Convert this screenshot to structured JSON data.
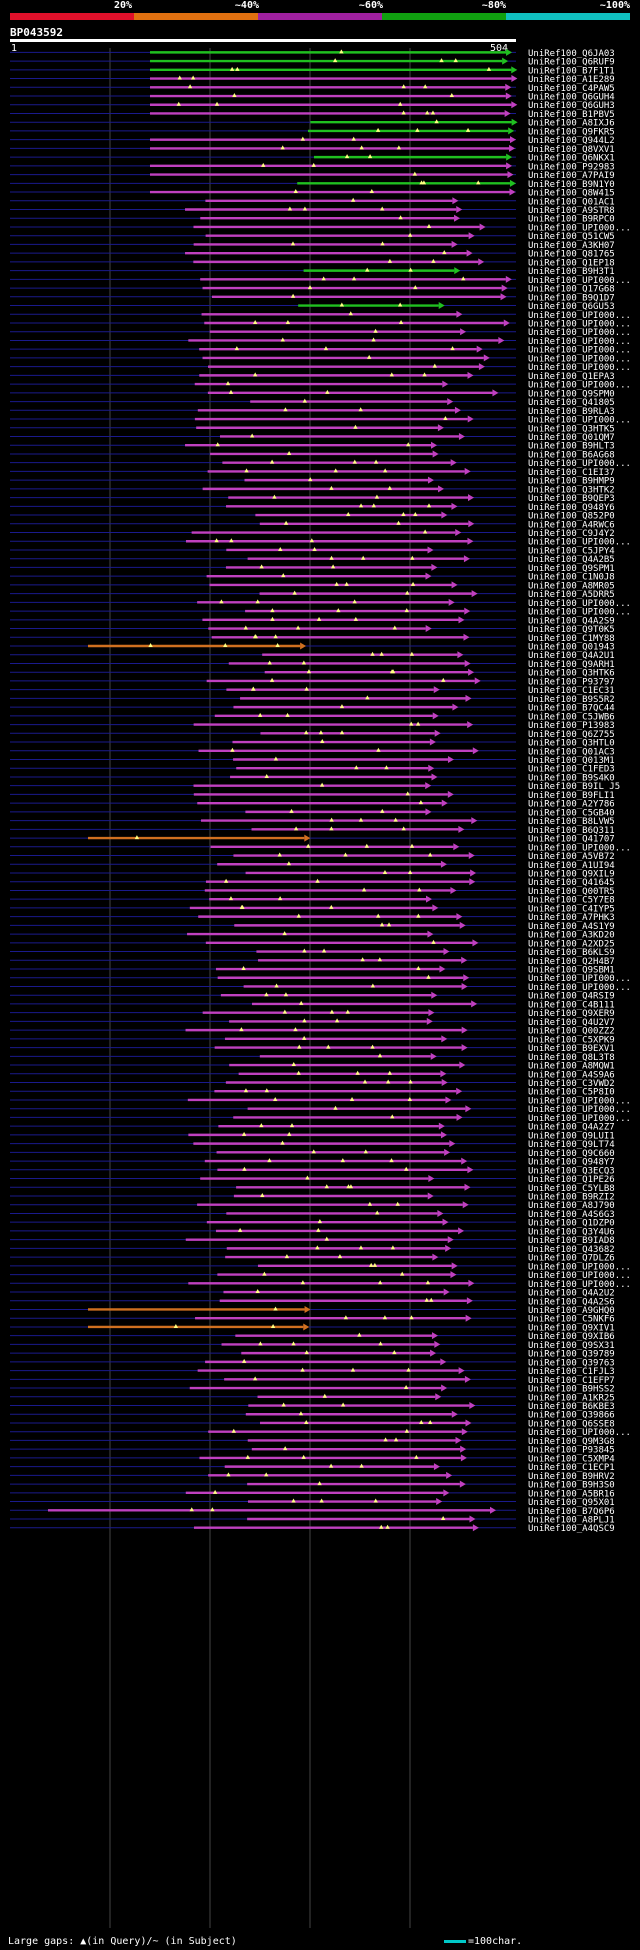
{
  "header": {
    "percent_labels": [
      "20%",
      "~40%",
      "~60%",
      "~80%",
      "~100%"
    ],
    "color_scale": [
      "#e0102a",
      "#e07010",
      "#a020a0",
      "#10a010",
      "#10c0c0"
    ],
    "query_id": "BP043592",
    "start_position": "1",
    "end_position": "504"
  },
  "footer": {
    "legend": "Large gaps: ▲(in Query)/~ (in Subject)",
    "scale_label": "=100char."
  },
  "chart_data": {
    "type": "alignment",
    "query_length": 504,
    "scale_chars": 100,
    "hits": [
      "UniRef100_Q6JA03",
      "UniRef100_Q6RUF9",
      "UniRef100_B7F1T1",
      "UniRef100_A1E289",
      "UniRef100_C4PAW5",
      "UniRef100_Q6GUH4",
      "UniRef100_Q6GUH3",
      "UniRef100_B1PBV5",
      "UniRef100_A8IXJ6",
      "UniRef100_Q9FKR5",
      "UniRef100_Q944L2",
      "UniRef100_Q8VXV1",
      "UniRef100_Q6NKX1",
      "UniRef100_P92983",
      "UniRef100_A7PAI9",
      "UniRef100_B9N1Y0",
      "UniRef100_Q8W415",
      "UniRef100_Q01AC1",
      "UniRef100_A9STR8",
      "UniRef100_B9RPC0",
      "UniRef100_UPI000...",
      "UniRef100_Q51CW5",
      "UniRef100_A3KH07",
      "UniRef100_Q81765",
      "UniRef100_Q1EP18",
      "UniRef100_B9H3T1",
      "UniRef100_UPI000...",
      "UniRef100_Q17G68",
      "UniRef100_B9Q1D7",
      "UniRef100_Q6GU53",
      "UniRef100_UPI000...",
      "UniRef100_UPI000...",
      "UniRef100_UPI000...",
      "UniRef100_UPI000...",
      "UniRef100_UPI000...",
      "UniRef100_UPI000...",
      "UniRef100_UPI000...",
      "UniRef100_Q1EPA3",
      "UniRef100_UPI000...",
      "UniRef100_Q9SPM0",
      "UniRef100_Q41805",
      "UniRef100_B9RLA3",
      "UniRef100_UPI000...",
      "UniRef100_Q3HTK5",
      "UniRef100_Q01QM7",
      "UniRef100_B9HLT3",
      "UniRef100_B6AG68",
      "UniRef100_UPI000...",
      "UniRef100_C1EI37",
      "UniRef100_B9HMP9",
      "UniRef100_Q3HTK2",
      "UniRef100_B9QEP3",
      "UniRef100_Q948Y6",
      "UniRef100_Q852P0",
      "UniRef100_A4RWC6",
      "UniRef100_C9J4Y2",
      "UniRef100_UPI000...",
      "UniRef100_C5JPY4",
      "UniRef100_Q4A2B5",
      "UniRef100_Q9SPM1",
      "UniRef100_C1N0J8",
      "UniRef100_A8MR05",
      "UniRef100_A5DRR5",
      "UniRef100_UPI000...",
      "UniRef100_UPI000...",
      "UniRef100_Q4A2S9",
      "UniRef100_Q9T0K5",
      "UniRef100_C1MY88",
      "UniRef100_Q01943",
      "UniRef100_Q4A2U1",
      "UniRef100_Q9ARH1",
      "UniRef100_Q3HTK6",
      "UniRef100_P93797",
      "UniRef100_C1EC31",
      "UniRef100_B9S5R2",
      "UniRef100_B7QC44",
      "UniRef100_C5JWB6",
      "UniRef100_P13983",
      "UniRef100_Q6Z755",
      "UniRef100_Q3HTL0",
      "UniRef100_Q01AC3",
      "UniRef100_Q013M1",
      "UniRef100_C1FED3",
      "UniRef100_B9S4K0",
      "UniRef100_B9IL J5",
      "UniRef100_B9FLI1",
      "UniRef100_A2Y786",
      "UniRef100_C5GB40",
      "UniRef100_B8LVW5",
      "UniRef100_B6Q311",
      "UniRef100_Q41707",
      "UniRef100_UPI000...",
      "UniRef100_A5VB72",
      "UniRef100_A1UI94",
      "UniRef100_Q9XIL9",
      "UniRef100_Q41645",
      "UniRef100_Q00TR5",
      "UniRef100_C5Y7E8",
      "UniRef100_C4IYP5",
      "UniRef100_A7PHK3",
      "UniRef100_A4S1Y9",
      "UniRef100_A3KD20",
      "UniRef100_A2XD25",
      "UniRef100_B6KLS9",
      "UniRef100_Q2H4B7",
      "UniRef100_Q9SBM1",
      "UniRef100_UPI000...",
      "UniRef100_UPI000...",
      "UniRef100_Q4RSI9",
      "UniRef100_C4B111",
      "UniRef100_Q9XER9",
      "UniRef100_Q4U2V7",
      "UniRef100_Q00ZZ2",
      "UniRef100_C5XPK9",
      "UniRef100_B9EXV1",
      "UniRef100_Q8L3T8",
      "UniRef100_A8MQW1",
      "UniRef100_A4S9A6",
      "UniRef100_C3VWD2",
      "UniRef100_C5P8I0",
      "UniRef100_UPI000...",
      "UniRef100_UPI000...",
      "UniRef100_UPI000...",
      "UniRef100_Q4A2Z7",
      "UniRef100_Q9LUI1",
      "UniRef100_Q9LT74",
      "UniRef100_Q9C660",
      "UniRef100_Q948Y7",
      "UniRef100_Q3ECQ3",
      "UniRef100_Q1PE26",
      "UniRef100_C5YLB8",
      "UniRef100_B9RZI2",
      "UniRef100_A8J790",
      "UniRef100_A4S6G3",
      "UniRef100_Q1DZP0",
      "UniRef100_Q3Y4U6",
      "UniRef100_B9IAD8",
      "UniRef100_Q43682",
      "UniRef100_Q7DLZ6",
      "UniRef100_UPI000...",
      "UniRef100_UPI000...",
      "UniRef100_UPI000...",
      "UniRef100_Q4A2U2",
      "UniRef100_Q4A2S6",
      "UniRef100_A9GHQ0",
      "UniRef100_C5NKF6",
      "UniRef100_Q9XIV1",
      "UniRef100_Q9XIB6",
      "UniRef100_Q9SX31",
      "UniRef100_Q39789",
      "UniRef100_Q39763",
      "UniRef100_C1FJL3",
      "UniRef100_C1EFP7",
      "UniRef100_B9HSS2",
      "UniRef100_A1KR25",
      "UniRef100_B6KBE3",
      "UniRef100_Q39866",
      "UniRef100_Q6SSE8",
      "UniRef100_UPI000...",
      "UniRef100_Q9M3G8",
      "UniRef100_P93845",
      "UniRef100_C5XMP4",
      "UniRef100_C1ECP1",
      "UniRef100_B9HRV2",
      "UniRef100_B9H3S0",
      "UniRef100_A5BR16",
      "UniRef100_Q95X01",
      "UniRef100_B7Q6P6",
      "UniRef100_A8PLJ1",
      "UniRef100_A4QSC9"
    ]
  }
}
